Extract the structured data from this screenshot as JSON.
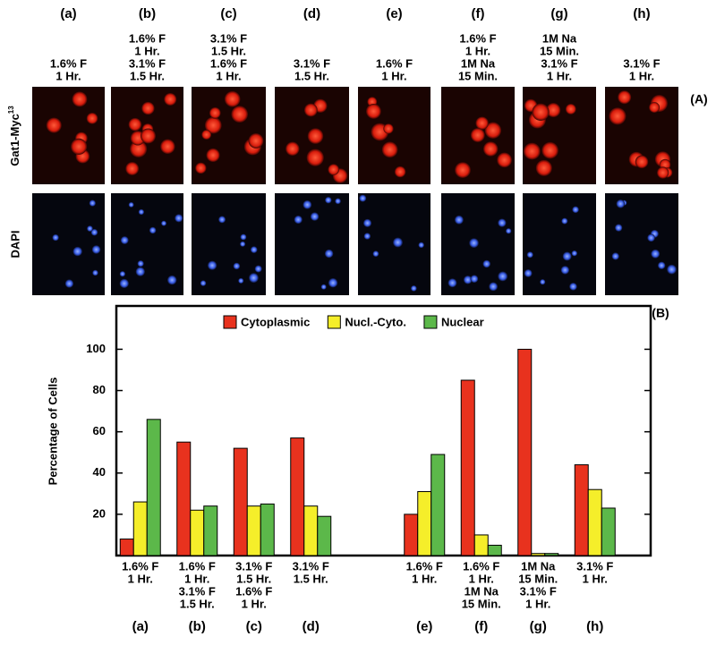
{
  "image_panel": {
    "label": "(A)",
    "rows": [
      {
        "name": "Gat1-Myc",
        "superscript": "13"
      },
      {
        "name": "DAPI"
      }
    ]
  },
  "chart_data": {
    "type": "bar",
    "panel_label": "(B)",
    "y_label": "Percentage of Cells",
    "categories": [
      "(a)",
      "(b)",
      "(c)",
      "(d)",
      null,
      "(e)",
      "(f)",
      "(g)",
      "(h)"
    ],
    "conditions": [
      [
        "1.6% F",
        "1 Hr."
      ],
      [
        "1.6% F",
        "1 Hr.",
        "3.1% F",
        "1.5 Hr."
      ],
      [
        "3.1% F",
        "1.5 Hr.",
        "1.6% F",
        "1 Hr."
      ],
      [
        "3.1% F",
        "1.5 Hr."
      ],
      null,
      [
        "1.6% F",
        "1 Hr."
      ],
      [
        "1.6% F",
        "1 Hr.",
        "1M Na",
        "15 Min."
      ],
      [
        "1M Na",
        "15 Min.",
        "3.1% F",
        "1 Hr."
      ],
      [
        "3.1% F",
        "1 Hr."
      ]
    ],
    "series": [
      {
        "name": "Cytoplasmic",
        "color": "#e8321e",
        "values": [
          8,
          55,
          52,
          57,
          null,
          20,
          85,
          100,
          44
        ]
      },
      {
        "name": "Nucl.-Cyto.",
        "color": "#f5ee2a",
        "values": [
          26,
          22,
          24,
          24,
          null,
          31,
          10,
          1,
          32
        ]
      },
      {
        "name": "Nuclear",
        "color": "#5cb84a",
        "values": [
          66,
          24,
          25,
          19,
          null,
          49,
          5,
          1,
          23
        ]
      }
    ],
    "ylim": [
      0,
      121
    ],
    "yticks": [
      20,
      40,
      60,
      80,
      100
    ]
  }
}
